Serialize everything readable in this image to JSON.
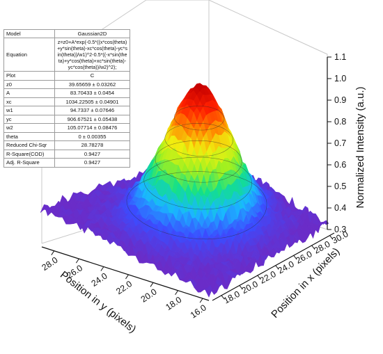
{
  "table": {
    "rows": [
      {
        "label": "Model",
        "value": "Gaussian2D"
      },
      {
        "label": "Equation",
        "value": "z=z0+A*exp(-0.5*((x*cos(theta)+y*sin(theta)-xc*cos(theta)-yc*sin(theta))/w1)^2-0.5*((-x*sin(theta)+y*cos(theta)+xc*sin(theta)-yc*cos(theta))/w2)^2);"
      },
      {
        "label": "Plot",
        "value": "C"
      },
      {
        "label": "z0",
        "value": "39.65659 ± 0.03262"
      },
      {
        "label": "A",
        "value": "83.70433 ± 0.0454"
      },
      {
        "label": "xc",
        "value": "1034.22505 ± 0.04901"
      },
      {
        "label": "w1",
        "value": "94.7337 ± 0.07646"
      },
      {
        "label": "yc",
        "value": "906.67521 ± 0.05438"
      },
      {
        "label": "w2",
        "value": "105.07714 ± 0.08476"
      },
      {
        "label": "theta",
        "value": "0 ± 0.00355"
      },
      {
        "label": "Reduced Chi-Sqr",
        "value": "28.78278"
      },
      {
        "label": "R-Square(COD)",
        "value": "0.9427"
      },
      {
        "label": "Adj. R-Square",
        "value": "0.9427"
      }
    ]
  },
  "chart_data": {
    "type": "surface3d",
    "zlabel": "Normalized Intensity (a.u.)",
    "xlabel": "Position in x (pixels)",
    "ylabel": "Position in y (pixels)",
    "zticks": [
      "0.3",
      "0.4",
      "0.5",
      "0.6",
      "0.7",
      "0.8",
      "0.9",
      "1.0",
      "1.1"
    ],
    "xticks": [
      "18.0",
      "20.0",
      "22.0",
      "24.0",
      "26.0",
      "28.0",
      "30.0"
    ],
    "yticks": [
      "16.0",
      "18.0",
      "20.0",
      "22.0",
      "24.0",
      "26.0",
      "28.0"
    ],
    "zlim": [
      0.3,
      1.1
    ],
    "xlim": [
      17,
      30.5
    ],
    "ylim": [
      15.5,
      29
    ],
    "peak": {
      "x": 24,
      "y": 22,
      "z": 1.0
    },
    "baseline_z": 0.38,
    "colormap": [
      "#6a2cc8",
      "#3b4cff",
      "#19b8ff",
      "#12e08a",
      "#9ff020",
      "#f0f010",
      "#ff8a00",
      "#ff2000",
      "#c40000"
    ]
  }
}
